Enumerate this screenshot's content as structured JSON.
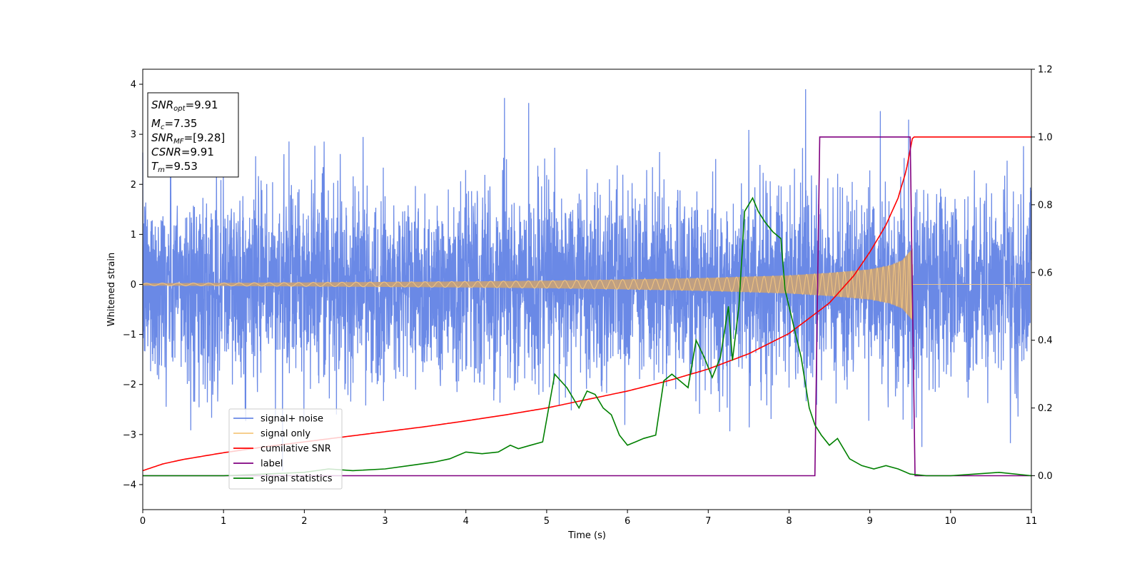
{
  "chart_data": {
    "type": "line",
    "title": "",
    "xlabel": "Time (s)",
    "ylabel": "Whitened strain",
    "y2label": "",
    "xlim": [
      0,
      11
    ],
    "ylim": [
      -4.5,
      4.3
    ],
    "y2lim": [
      -0.1,
      1.2
    ],
    "x_ticks": [
      0,
      1,
      2,
      3,
      4,
      5,
      6,
      7,
      8,
      9,
      10,
      11
    ],
    "y_ticks": [
      4,
      3,
      2,
      1,
      0,
      -1,
      -2,
      -3,
      -4
    ],
    "y2_ticks": [
      1.2,
      1.0,
      0.8,
      0.6,
      0.4,
      0.2,
      0.0
    ],
    "grid": false,
    "legend_position": "lower-left",
    "info_box": {
      "position": "top-left",
      "lines": [
        {
          "main": "SNR",
          "sub": "opt",
          "value": "=9.91"
        },
        {
          "main": "M",
          "sub": "c",
          "value": "=7.35"
        },
        {
          "main": "SNR",
          "sub": "MF",
          "value": "=[9.28]"
        },
        {
          "main": "CSNR",
          "sub": "",
          "value": "=9.91"
        },
        {
          "main": "T",
          "sub": "m",
          "value": "=9.53"
        }
      ]
    },
    "series": [
      {
        "name": "signal+ noise",
        "axis": "left",
        "color": "#6a89e6",
        "kind": "noise",
        "description_values": {
          "mean": 0.0,
          "std": 1.0,
          "peak_max": 3.9,
          "peak_min": -4.15,
          "x_start": 0,
          "x_end": 11
        }
      },
      {
        "name": "signal only",
        "axis": "left",
        "color": "#f5c77e",
        "kind": "chirp",
        "amplitude_start": 0.02,
        "amplitude_end": 0.72,
        "merger_time": 9.53,
        "x": [
          0,
          1,
          2,
          3,
          4,
          5,
          6,
          7,
          8,
          8.5,
          9,
          9.25,
          9.4,
          9.53
        ],
        "amplitude": [
          0.025,
          0.03,
          0.04,
          0.05,
          0.06,
          0.075,
          0.1,
          0.13,
          0.18,
          0.23,
          0.3,
          0.38,
          0.48,
          0.72
        ]
      },
      {
        "name": "cumilative SNR",
        "axis": "right",
        "color": "#ff0000",
        "x": [
          0,
          0.25,
          0.5,
          1,
          1.5,
          2,
          2.5,
          3,
          3.5,
          4,
          4.5,
          5,
          5.5,
          6,
          6.5,
          7,
          7.5,
          8,
          8.5,
          8.8,
          9,
          9.2,
          9.35,
          9.45,
          9.53,
          11
        ],
        "values": [
          0.015,
          0.035,
          0.048,
          0.068,
          0.085,
          0.1,
          0.115,
          0.13,
          0.145,
          0.162,
          0.18,
          0.2,
          0.225,
          0.25,
          0.28,
          0.315,
          0.36,
          0.42,
          0.51,
          0.59,
          0.66,
          0.74,
          0.82,
          0.9,
          1.0,
          1.0
        ]
      },
      {
        "name": "label",
        "axis": "right",
        "color": "#800080",
        "x": [
          0,
          8.32,
          8.38,
          9.5,
          9.56,
          11
        ],
        "values": [
          0,
          0,
          1,
          1,
          0,
          0
        ]
      },
      {
        "name": "signal statistics",
        "axis": "right",
        "color": "#008000",
        "x": [
          0,
          0.5,
          1,
          1.5,
          2,
          2.3,
          2.6,
          3,
          3.3,
          3.6,
          3.8,
          4,
          4.2,
          4.4,
          4.55,
          4.65,
          4.8,
          4.95,
          5.1,
          5.25,
          5.4,
          5.5,
          5.6,
          5.7,
          5.8,
          5.9,
          6,
          6.1,
          6.2,
          6.35,
          6.45,
          6.55,
          6.65,
          6.75,
          6.85,
          6.95,
          7.05,
          7.15,
          7.25,
          7.3,
          7.38,
          7.45,
          7.5,
          7.55,
          7.62,
          7.7,
          7.8,
          7.9,
          7.95,
          8.05,
          8.15,
          8.25,
          8.32,
          8.4,
          8.5,
          8.6,
          8.75,
          8.9,
          9.05,
          9.2,
          9.35,
          9.5,
          9.7,
          10,
          10.3,
          10.6,
          11
        ],
        "values": [
          0.0,
          0.0,
          0.0,
          0.005,
          0.01,
          0.02,
          0.015,
          0.02,
          0.03,
          0.04,
          0.05,
          0.07,
          0.065,
          0.07,
          0.09,
          0.08,
          0.09,
          0.1,
          0.3,
          0.26,
          0.2,
          0.25,
          0.24,
          0.2,
          0.18,
          0.12,
          0.09,
          0.1,
          0.11,
          0.12,
          0.28,
          0.3,
          0.28,
          0.26,
          0.4,
          0.35,
          0.29,
          0.35,
          0.5,
          0.34,
          0.5,
          0.78,
          0.8,
          0.82,
          0.78,
          0.75,
          0.72,
          0.7,
          0.55,
          0.45,
          0.35,
          0.2,
          0.15,
          0.12,
          0.09,
          0.11,
          0.05,
          0.03,
          0.02,
          0.03,
          0.02,
          0.005,
          0.0,
          0.0,
          0.005,
          0.01,
          0.0
        ]
      }
    ]
  }
}
